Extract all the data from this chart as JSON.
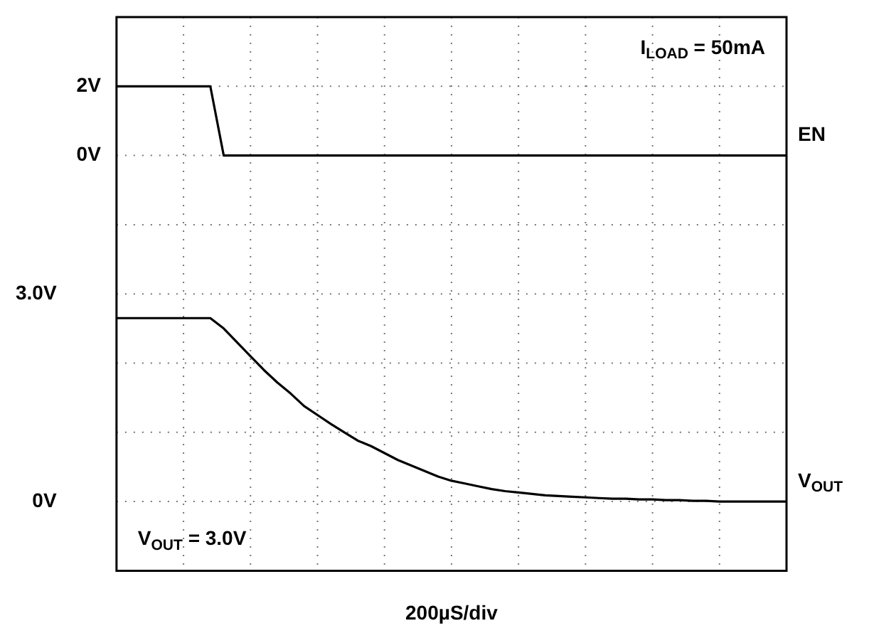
{
  "chart_data": {
    "type": "line",
    "xlabel": "200µS/div",
    "categories": [
      null,
      null,
      null,
      null,
      null,
      null,
      null,
      null,
      null,
      null,
      null,
      null,
      null,
      null,
      null,
      null,
      null,
      null,
      null,
      null,
      null,
      null,
      null,
      null,
      null,
      null,
      null,
      null,
      null,
      null,
      null,
      null,
      null,
      null,
      null,
      null,
      null,
      null,
      null,
      null,
      null,
      null,
      null,
      null,
      null,
      null,
      null,
      null,
      null,
      null,
      null
    ],
    "series": [
      {
        "name": "EN",
        "color": "#000000",
        "values": [
          2,
          2,
          2,
          2,
          2,
          2,
          2,
          2,
          0,
          0,
          0,
          0,
          0,
          0,
          0,
          0,
          0,
          0,
          0,
          0,
          0,
          0,
          0,
          0,
          0,
          0,
          0,
          0,
          0,
          0,
          0,
          0,
          0,
          0,
          0,
          0,
          0,
          0,
          0,
          0,
          0,
          0,
          0,
          0,
          0,
          0,
          0,
          0,
          0,
          0,
          0
        ]
      },
      {
        "name": "V$_{OUT}$",
        "color": "#000000",
        "axis": "y2",
        "values": [
          2.65,
          2.65,
          2.65,
          2.65,
          2.65,
          2.65,
          2.65,
          2.65,
          2.5,
          2.3,
          2.1,
          1.9,
          1.72,
          1.56,
          1.38,
          1.25,
          1.12,
          1.0,
          0.88,
          0.8,
          0.7,
          0.6,
          0.52,
          0.44,
          0.36,
          0.3,
          0.26,
          0.22,
          0.18,
          0.15,
          0.13,
          0.11,
          0.09,
          0.08,
          0.07,
          0.06,
          0.05,
          0.04,
          0.04,
          0.03,
          0.03,
          0.02,
          0.02,
          0.01,
          0.01,
          0,
          0,
          0,
          0,
          0,
          0
        ]
      }
    ],
    "ylim": [
      -12,
      4
    ],
    "yticks": [
      {
        "value": 2,
        "label": "2V"
      },
      {
        "value": 0,
        "label": "0V"
      }
    ],
    "y2lim": [
      -1,
      7
    ],
    "y2ticks": [
      {
        "value": 3,
        "label": "3.0V"
      },
      {
        "value": 0,
        "label": "0V"
      }
    ],
    "annotations": [
      "I$_{LOAD}$ = 50mA",
      "V$_{OUT}$ = 3.0V"
    ],
    "grid": true,
    "legend": false,
    "marker": "none",
    "line_style": "solid",
    "tick_labels": "y"
  }
}
